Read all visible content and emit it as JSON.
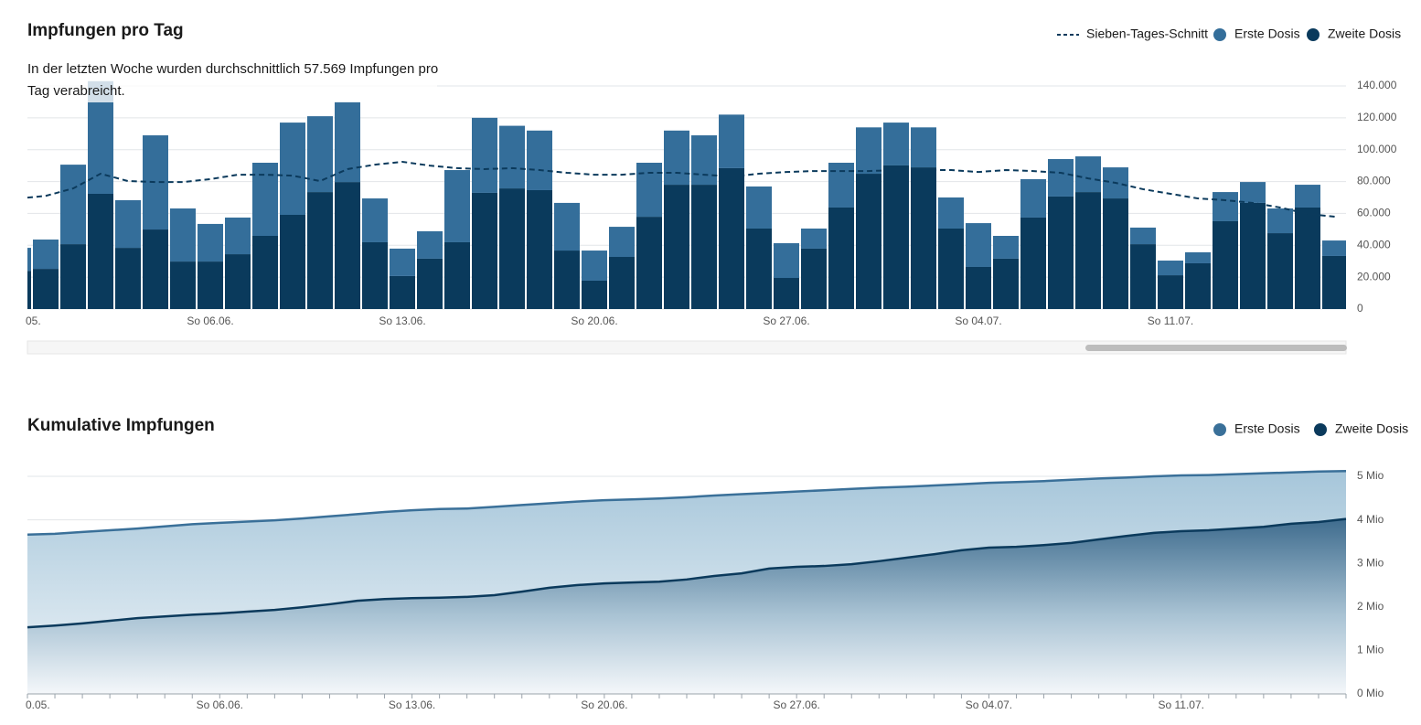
{
  "chart_data": [
    {
      "type": "bar",
      "stacked": true,
      "title": "Impfungen pro Tag",
      "subtitle": "In der letzten Woche wurden durchschnittlich 57.569 Impfungen pro Tag verabreicht.",
      "categories": [
        "05.",
        null,
        null,
        null,
        null,
        null,
        null,
        "So 06.06.",
        null,
        null,
        null,
        null,
        null,
        null,
        "So 13.06.",
        null,
        null,
        null,
        null,
        null,
        null,
        "So 20.06.",
        null,
        null,
        null,
        null,
        null,
        null,
        "So 27.06.",
        null,
        null,
        null,
        null,
        null,
        null,
        "So 04.07.",
        null,
        null,
        null,
        null,
        null,
        null,
        "So 11.07.",
        null,
        null,
        null,
        null,
        null,
        null
      ],
      "series": [
        {
          "name": "Sieben-Tages-Schnitt",
          "type": "line",
          "dashed": true,
          "color": "#0b3a5c",
          "values": [
            69400,
            71000,
            75700,
            84900,
            80300,
            79700,
            79700,
            81500,
            84300,
            84300,
            83700,
            80300,
            87800,
            90600,
            92400,
            90000,
            88400,
            87800,
            88400,
            87200,
            85500,
            84300,
            84300,
            85500,
            85500,
            84300,
            83200,
            84900,
            86000,
            86600,
            86600,
            86600,
            87200,
            87200,
            87200,
            86000,
            87200,
            86600,
            85500,
            82000,
            79200,
            75200,
            72300,
            69400,
            68300,
            66600,
            63700,
            59700,
            57900
          ]
        },
        {
          "name": "Erste Dosis",
          "color": "#346e9a",
          "values": [
            14400,
            18400,
            49900,
            70700,
            29900,
            59100,
            33300,
            23600,
            23000,
            45900,
            57900,
            47600,
            50300,
            27500,
            17200,
            17200,
            45300,
            47100,
            39300,
            37400,
            29900,
            18900,
            18900,
            33900,
            34000,
            31000,
            33600,
            26400,
            21800,
            12600,
            28100,
            29100,
            26900,
            25100,
            19500,
            27500,
            14300,
            24100,
            23500,
            22400,
            19500,
            10400,
            9200,
            6900,
            18300,
            13100,
            15500,
            14300,
            9700
          ]
        },
        {
          "name": "Zweite Dosis",
          "color": "#0a3a5c",
          "stack_bottom": true,
          "values": [
            24000,
            25200,
            40700,
            72300,
            38400,
            49900,
            29800,
            29800,
            34400,
            45900,
            59100,
            73400,
            79700,
            41900,
            20700,
            31600,
            41900,
            72900,
            75700,
            74600,
            36700,
            17800,
            32700,
            57900,
            78000,
            78000,
            88400,
            50500,
            19500,
            37900,
            63700,
            84900,
            90100,
            88900,
            50500,
            26400,
            31600,
            57400,
            70600,
            73400,
            69400,
            40700,
            21200,
            28700,
            55100,
            66600,
            47600,
            63700,
            33300
          ]
        }
      ],
      "ylim": [
        0,
        140000
      ],
      "yticks": [
        0,
        {
          "value": 20000,
          "label": "20.000"
        },
        {
          "value": 40000,
          "label": "40.000"
        },
        {
          "value": 60000,
          "label": "60.000"
        },
        {
          "value": 80000,
          "label": "80.000"
        },
        {
          "value": 100000,
          "label": "100.000"
        },
        {
          "value": 120000,
          "label": "120.000"
        },
        {
          "value": 140000,
          "label": "140.000"
        }
      ],
      "grid": true
    },
    {
      "type": "area",
      "title": "Kumulative Impfungen",
      "categories": [
        "0.05.",
        null,
        null,
        null,
        null,
        null,
        null,
        "So 06.06.",
        null,
        null,
        null,
        null,
        null,
        null,
        "So 13.06.",
        null,
        null,
        null,
        null,
        null,
        null,
        "So 20.06.",
        null,
        null,
        null,
        null,
        null,
        null,
        "So 27.06.",
        null,
        null,
        null,
        null,
        null,
        null,
        "So 04.07.",
        null,
        null,
        null,
        null,
        null,
        null,
        "So 11.07.",
        null,
        null,
        null,
        null,
        null,
        null
      ],
      "series": [
        {
          "name": "Erste Dosis",
          "color": "#3a7099",
          "values": [
            3.66,
            3.68,
            3.72,
            3.76,
            3.8,
            3.85,
            3.9,
            3.93,
            3.96,
            3.99,
            4.03,
            4.08,
            4.13,
            4.18,
            4.22,
            4.25,
            4.26,
            4.3,
            4.34,
            4.38,
            4.42,
            4.45,
            4.47,
            4.49,
            4.52,
            4.56,
            4.59,
            4.62,
            4.65,
            4.68,
            4.71,
            4.74,
            4.76,
            4.79,
            4.82,
            4.85,
            4.87,
            4.89,
            4.92,
            4.95,
            4.97,
            5.0,
            5.02,
            5.03,
            5.05,
            5.07,
            5.09,
            5.11,
            5.12
          ]
        },
        {
          "name": "Zweite Dosis",
          "color": "#0b3a5c",
          "values": [
            1.53,
            1.57,
            1.62,
            1.68,
            1.74,
            1.78,
            1.82,
            1.85,
            1.89,
            1.93,
            1.99,
            2.06,
            2.14,
            2.18,
            2.2,
            2.21,
            2.23,
            2.27,
            2.35,
            2.44,
            2.5,
            2.54,
            2.56,
            2.58,
            2.63,
            2.71,
            2.77,
            2.88,
            2.92,
            2.94,
            2.98,
            3.05,
            3.13,
            3.21,
            3.3,
            3.36,
            3.38,
            3.42,
            3.47,
            3.55,
            3.63,
            3.7,
            3.74,
            3.76,
            3.8,
            3.84,
            3.91,
            3.95,
            4.02
          ]
        }
      ],
      "ylim": [
        0,
        5
      ],
      "yticks": [
        {
          "value": 0,
          "label": "0 Mio"
        },
        {
          "value": 1,
          "label": "1 Mio"
        },
        {
          "value": 2,
          "label": "2 Mio"
        },
        {
          "value": 3,
          "label": "3 Mio"
        },
        {
          "value": 4,
          "label": "4 Mio"
        },
        {
          "value": 5,
          "label": "5 Mio"
        }
      ],
      "grid": true
    }
  ]
}
